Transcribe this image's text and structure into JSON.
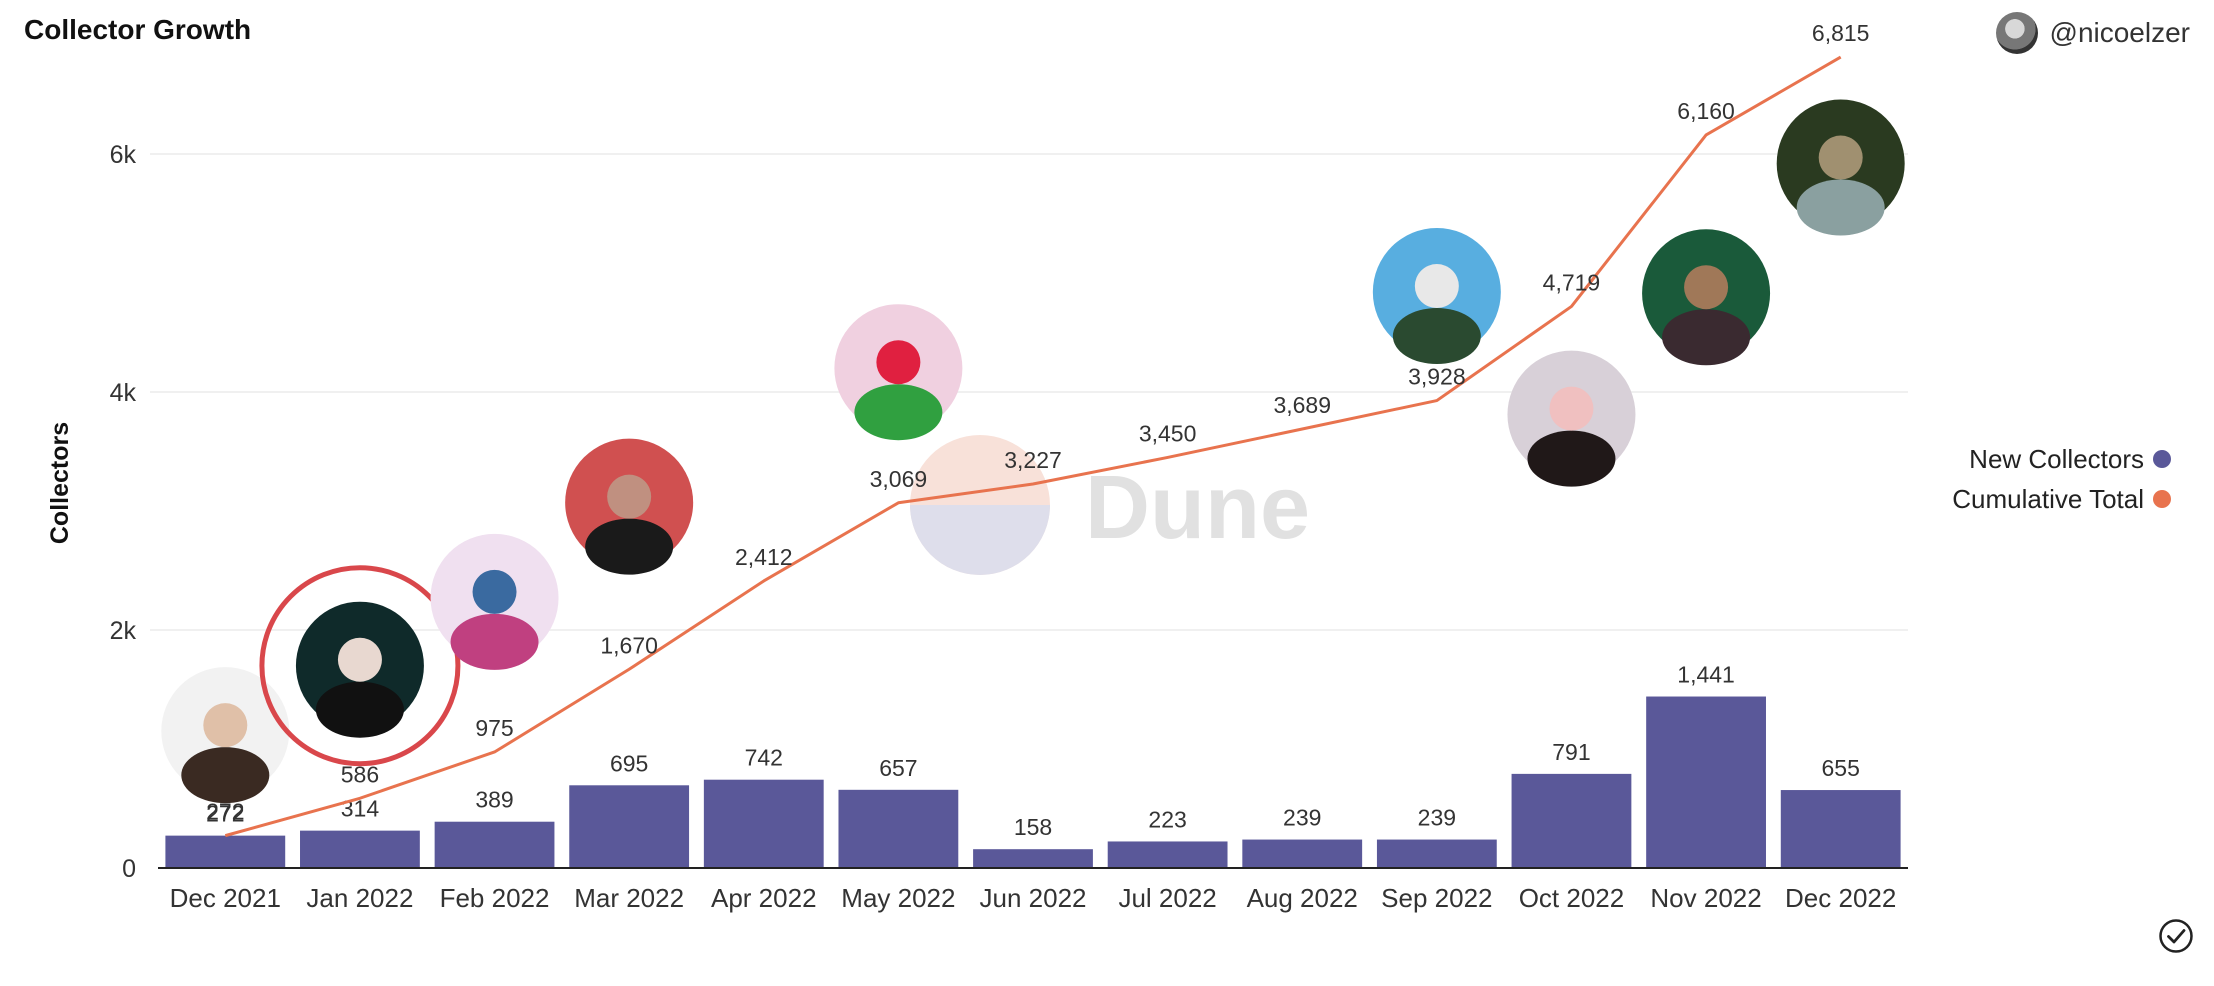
{
  "header": {
    "title": "Collector Growth",
    "username": "@nicoelzer"
  },
  "watermark": "Dune",
  "icons": [
    "user-avatar",
    "check-circle-icon"
  ],
  "chart_data": {
    "type": "bar",
    "categories": [
      "Dec 2021",
      "Jan 2022",
      "Feb 2022",
      "Mar 2022",
      "Apr 2022",
      "May 2022",
      "Jun 2022",
      "Jul 2022",
      "Aug 2022",
      "Sep 2022",
      "Oct 2022",
      "Nov 2022",
      "Dec 2022"
    ],
    "series": [
      {
        "name": "New Collectors",
        "type": "bar",
        "color": "#5a5899",
        "values": [
          272,
          314,
          389,
          695,
          742,
          657,
          158,
          223,
          239,
          239,
          791,
          1441,
          655
        ]
      },
      {
        "name": "Cumulative Total",
        "type": "line",
        "color": "#e8734e",
        "values": [
          272,
          586,
          975,
          1670,
          2412,
          3069,
          3227,
          3450,
          3689,
          3928,
          4719,
          6160,
          6815
        ]
      }
    ],
    "bar_labels": [
      "272",
      "314",
      "389",
      "695",
      "742",
      "657",
      "158",
      "223",
      "239",
      "239",
      "791",
      "1,441",
      "655"
    ],
    "line_labels": [
      "272",
      "586",
      "975",
      "1,670",
      "2,412",
      "3,069",
      "3,227",
      "3,450",
      "3,689",
      "3,928",
      "4,719",
      "6,160",
      "6,815"
    ],
    "ylabel": "Collectors",
    "xlabel": "",
    "ylim": [
      0,
      7000
    ],
    "yticks": [
      {
        "value": 0,
        "label": "0"
      },
      {
        "value": 2000,
        "label": "2k"
      },
      {
        "value": 4000,
        "label": "4k"
      },
      {
        "value": 6000,
        "label": "6k"
      }
    ],
    "grid": true,
    "legend_position": "right",
    "legend": [
      {
        "label": "New Collectors",
        "color": "#5a5899"
      },
      {
        "label": "Cumulative Total",
        "color": "#e8734e"
      }
    ],
    "photo_markers": [
      {
        "category": "Dec 2021",
        "value": 1150,
        "highlighted": false
      },
      {
        "category": "Jan 2022",
        "value": 1700,
        "highlighted": true
      },
      {
        "category": "Feb 2022",
        "value": 2270,
        "highlighted": false
      },
      {
        "category": "Mar 2022",
        "value": 3070,
        "highlighted": false
      },
      {
        "category": "May 2022",
        "value": 4200,
        "highlighted": false
      },
      {
        "category": "Sep 2022",
        "value": 4840,
        "highlighted": false
      },
      {
        "category": "Oct 2022",
        "value": 3810,
        "highlighted": false
      },
      {
        "category": "Nov 2022",
        "value": 4830,
        "highlighted": false
      },
      {
        "category": "Dec 2022",
        "value": 5920,
        "highlighted": false
      }
    ]
  }
}
